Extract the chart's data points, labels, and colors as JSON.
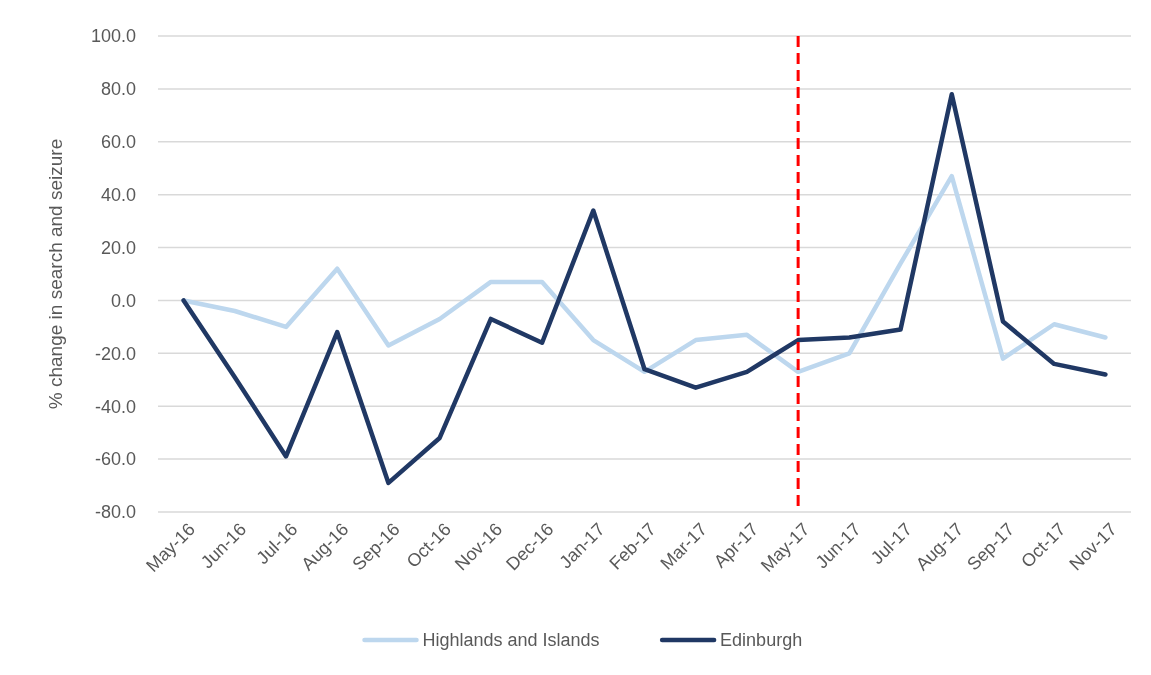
{
  "chart_data": {
    "type": "line",
    "ylabel": "% change in search and seizure",
    "categories": [
      "May-16",
      "Jun-16",
      "Jul-16",
      "Aug-16",
      "Sep-16",
      "Oct-16",
      "Nov-16",
      "Dec-16",
      "Jan-17",
      "Feb-17",
      "Mar-17",
      "Apr-17",
      "May-17",
      "Jun-17",
      "Jul-17",
      "Aug-17",
      "Sep-17",
      "Oct-17",
      "Nov-17"
    ],
    "series": [
      {
        "name": "Highlands and Islands",
        "color": "#bdd7ee",
        "values": [
          0,
          -4,
          -10,
          12,
          -17,
          -7,
          7,
          7,
          -15,
          -27,
          -15,
          -13,
          -27,
          -20,
          14,
          47,
          -22,
          -9,
          -14
        ]
      },
      {
        "name": "Edinburgh",
        "color": "#203864",
        "values": [
          0,
          -29,
          -59,
          -12,
          -69,
          -52,
          -7,
          -16,
          34,
          -26,
          -33,
          -27,
          -15,
          -14,
          -11,
          78,
          -8,
          -24,
          -28
        ]
      }
    ],
    "ylim": [
      -80,
      100
    ],
    "yticks": [
      {
        "value": -80,
        "label": "-80.0"
      },
      {
        "value": -60,
        "label": "-60.0"
      },
      {
        "value": -40,
        "label": "-40.0"
      },
      {
        "value": -20,
        "label": "-20.0"
      },
      {
        "value": 0,
        "label": "0.0"
      },
      {
        "value": 20,
        "label": "20.0"
      },
      {
        "value": 40,
        "label": "40.0"
      },
      {
        "value": 60,
        "label": "60.0"
      },
      {
        "value": 80,
        "label": "80.0"
      },
      {
        "value": 100,
        "label": "100.0"
      }
    ],
    "ref_lines": [
      {
        "axis": "x",
        "value": "May-17",
        "color": "#ff0000",
        "line_style": "dashed"
      }
    ],
    "grid": "y",
    "legend": "bottom"
  }
}
